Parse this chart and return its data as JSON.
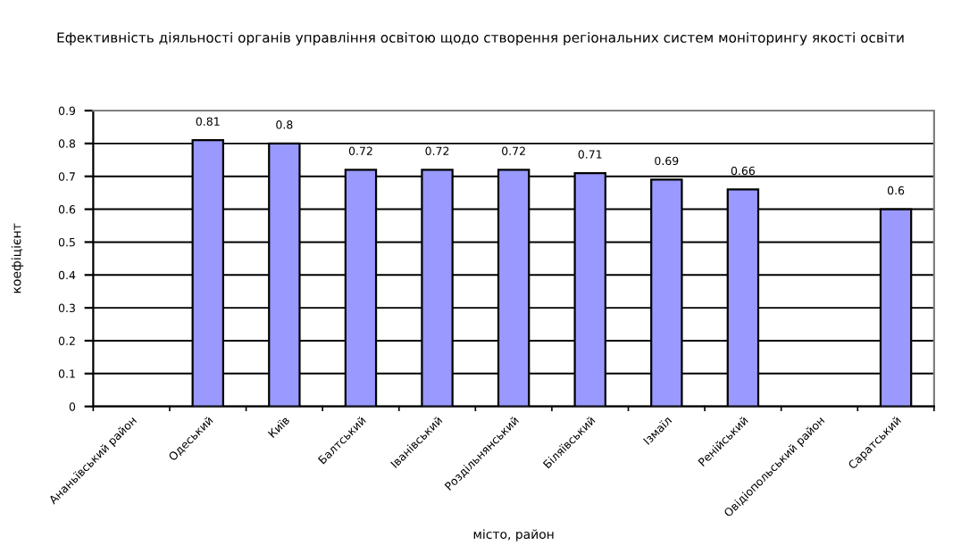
{
  "chart_data": {
    "type": "bar",
    "title": "Ефективність діяльності органів управління освітою щодо створення регіональних систем моніторингу якості освіти",
    "xlabel": "місто, район",
    "ylabel": "коефіцієнт",
    "categories": [
      "Ананьївський район",
      "Одеський",
      "Київ",
      "Балтський",
      "Іванівський",
      "Роздільнянський",
      "Біляївський",
      "Ізмаїл",
      "Ренійський",
      "Овідіопольський район",
      "Саратський"
    ],
    "values": [
      null,
      0.81,
      0.8,
      0.72,
      0.72,
      0.72,
      0.71,
      0.69,
      0.66,
      null,
      0.6
    ],
    "color": "#9999ff",
    "ylim": [
      0,
      0.9
    ],
    "yticks": [
      0,
      0.1,
      0.2,
      0.3,
      0.4,
      0.5,
      0.6,
      0.7,
      0.8,
      0.9
    ],
    "grid": "y",
    "data_labels": true,
    "legend": false
  }
}
